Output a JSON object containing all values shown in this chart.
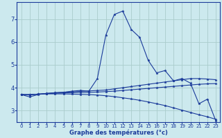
{
  "background_color": "#cce9ee",
  "grid_color": "#aacccc",
  "line_color": "#1a3a9a",
  "xlabel": "Graphe des températures (°c)",
  "xlim": [
    -0.5,
    23.5
  ],
  "ylim": [
    2.5,
    7.75
  ],
  "yticks": [
    3,
    4,
    5,
    6,
    7
  ],
  "xticks": [
    0,
    1,
    2,
    3,
    4,
    5,
    6,
    7,
    8,
    9,
    10,
    11,
    12,
    13,
    14,
    15,
    16,
    17,
    18,
    19,
    20,
    21,
    22,
    23
  ],
  "lines": [
    {
      "x": [
        0,
        1,
        2,
        3,
        4,
        5,
        6,
        7,
        8,
        9,
        10,
        11,
        12,
        13,
        14,
        15,
        16,
        17,
        18,
        19,
        20,
        21,
        22,
        23
      ],
      "y": [
        3.7,
        3.6,
        3.7,
        3.75,
        3.78,
        3.8,
        3.85,
        3.88,
        3.85,
        4.4,
        6.3,
        7.2,
        7.35,
        6.55,
        6.2,
        5.2,
        4.65,
        4.75,
        4.3,
        4.4,
        4.2,
        3.3,
        3.5,
        2.55
      ]
    },
    {
      "x": [
        0,
        1,
        2,
        3,
        4,
        5,
        6,
        7,
        8,
        9,
        10,
        11,
        12,
        13,
        14,
        15,
        16,
        17,
        18,
        19,
        20,
        21,
        22,
        23
      ],
      "y": [
        3.7,
        3.7,
        3.72,
        3.75,
        3.78,
        3.8,
        3.82,
        3.84,
        3.86,
        3.88,
        3.9,
        3.95,
        4.0,
        4.05,
        4.1,
        4.15,
        4.2,
        4.25,
        4.3,
        4.35,
        4.4,
        4.4,
        4.38,
        4.35
      ]
    },
    {
      "x": [
        0,
        1,
        2,
        3,
        4,
        5,
        6,
        7,
        8,
        9,
        10,
        11,
        12,
        13,
        14,
        15,
        16,
        17,
        18,
        19,
        20,
        21,
        22,
        23
      ],
      "y": [
        3.7,
        3.7,
        3.72,
        3.74,
        3.76,
        3.77,
        3.78,
        3.79,
        3.8,
        3.81,
        3.83,
        3.85,
        3.88,
        3.91,
        3.94,
        3.97,
        4.0,
        4.03,
        4.06,
        4.09,
        4.12,
        4.15,
        4.17,
        4.18
      ]
    },
    {
      "x": [
        0,
        1,
        2,
        3,
        4,
        5,
        6,
        7,
        8,
        9,
        10,
        11,
        12,
        13,
        14,
        15,
        16,
        17,
        18,
        19,
        20,
        21,
        22,
        23
      ],
      "y": [
        3.7,
        3.68,
        3.72,
        3.73,
        3.73,
        3.73,
        3.72,
        3.71,
        3.7,
        3.68,
        3.65,
        3.61,
        3.56,
        3.51,
        3.45,
        3.38,
        3.3,
        3.22,
        3.12,
        3.02,
        2.92,
        2.82,
        2.73,
        2.62
      ]
    }
  ]
}
